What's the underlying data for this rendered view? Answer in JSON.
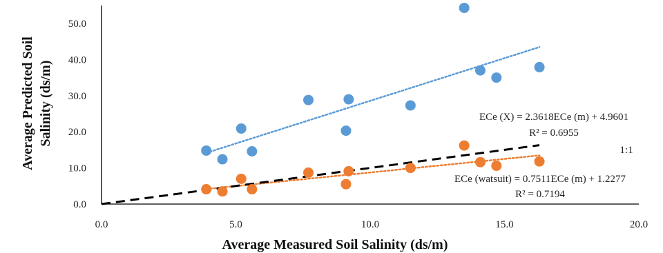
{
  "chart_data": {
    "type": "scatter",
    "title": "",
    "xlabel": "Average Measured Soil Salinity (ds/m)",
    "ylabel_lines": [
      "Average Predicted Soil",
      "Salinity (ds/m)"
    ],
    "xlim": [
      0,
      20
    ],
    "ylim": [
      0,
      55
    ],
    "x_ticks": [
      0,
      5,
      10,
      15,
      20
    ],
    "x_tick_labels": [
      "0.0",
      "5.0",
      "10.0",
      "15.0",
      "20.0"
    ],
    "y_ticks": [
      0,
      10,
      20,
      30,
      40,
      50
    ],
    "y_tick_labels": [
      "0.0",
      "10.0",
      "20.0",
      "30.0",
      "40.0",
      "50.0"
    ],
    "grid": false,
    "series": [
      {
        "color": "#5b9bd5",
        "points": [
          [
            3.9,
            14.8
          ],
          [
            4.5,
            12.4
          ],
          [
            5.2,
            20.9
          ],
          [
            5.6,
            14.6
          ],
          [
            7.7,
            28.8
          ],
          [
            9.1,
            20.3
          ],
          [
            9.2,
            29.0
          ],
          [
            11.5,
            27.3
          ],
          [
            13.5,
            54.3
          ],
          [
            14.1,
            37.0
          ],
          [
            14.7,
            35.0
          ],
          [
            16.3,
            37.9
          ]
        ],
        "trendline": {
          "slope": 2.3618,
          "intercept": 4.9601,
          "x_range": [
            3.9,
            16.3
          ],
          "style": "dotted"
        }
      },
      {
        "color": "#ed7d31",
        "points": [
          [
            3.9,
            4.1
          ],
          [
            4.5,
            3.5
          ],
          [
            5.2,
            7.0
          ],
          [
            5.6,
            4.1
          ],
          [
            7.7,
            8.7
          ],
          [
            9.1,
            5.5
          ],
          [
            9.2,
            9.1
          ],
          [
            11.5,
            10.0
          ],
          [
            13.5,
            16.2
          ],
          [
            14.1,
            11.6
          ],
          [
            14.7,
            10.6
          ],
          [
            16.3,
            11.8
          ]
        ],
        "trendline": {
          "slope": 0.7511,
          "intercept": 1.2277,
          "x_range": [
            3.9,
            16.3
          ],
          "style": "dotted"
        }
      }
    ],
    "reference_line": {
      "label": "1:1",
      "color": "#000000",
      "style": "dashed",
      "x_range": [
        0,
        16.3
      ]
    },
    "annotations": [
      {
        "id": "eq-x",
        "text": "ECe (X) = 2.3618ECe (m) + 4.9601"
      },
      {
        "id": "r2-x",
        "text": "R² = 0.6955"
      },
      {
        "id": "eq-w",
        "text": "ECe (watsuit) = 0.7511ECe (m) + 1.2277"
      },
      {
        "id": "r2-w",
        "text": "R² = 0.7194"
      }
    ]
  }
}
